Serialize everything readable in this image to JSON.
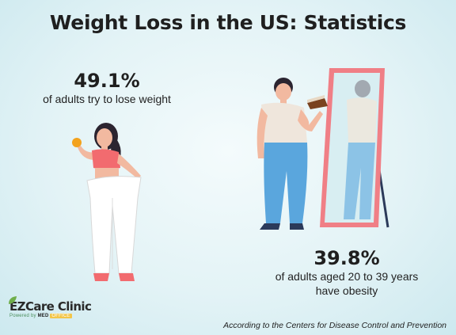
{
  "title": "Weight Loss in the US: Statistics",
  "stat_left": {
    "value": "49.1%",
    "description": "of adults try to lose weight"
  },
  "stat_right": {
    "value": "39.8%",
    "description_line1": "of adults aged 20 to 39 years",
    "description_line2": "have obesity"
  },
  "logo": {
    "brand_ez": "EZ",
    "brand_rest": "Care Clinic",
    "powered_by": "Powered by",
    "powered_brand": "MED",
    "powered_tag": "OFFICE"
  },
  "source": "According to the Centers for Disease Control and Prevention",
  "colors": {
    "title_text": "#1f1f1f",
    "mirror_frame": "#f07f86",
    "mirror_glass": "#d8eef2",
    "shirt_pink": "#f26b6f",
    "jeans_blue": "#5aa6dd",
    "shirt_beige": "#efe6dc",
    "logo_green": "#4a8e5b"
  },
  "icons": [
    "woman-loose-pants-illustration",
    "woman-mirror-illustration",
    "leaf-logo-icon"
  ]
}
